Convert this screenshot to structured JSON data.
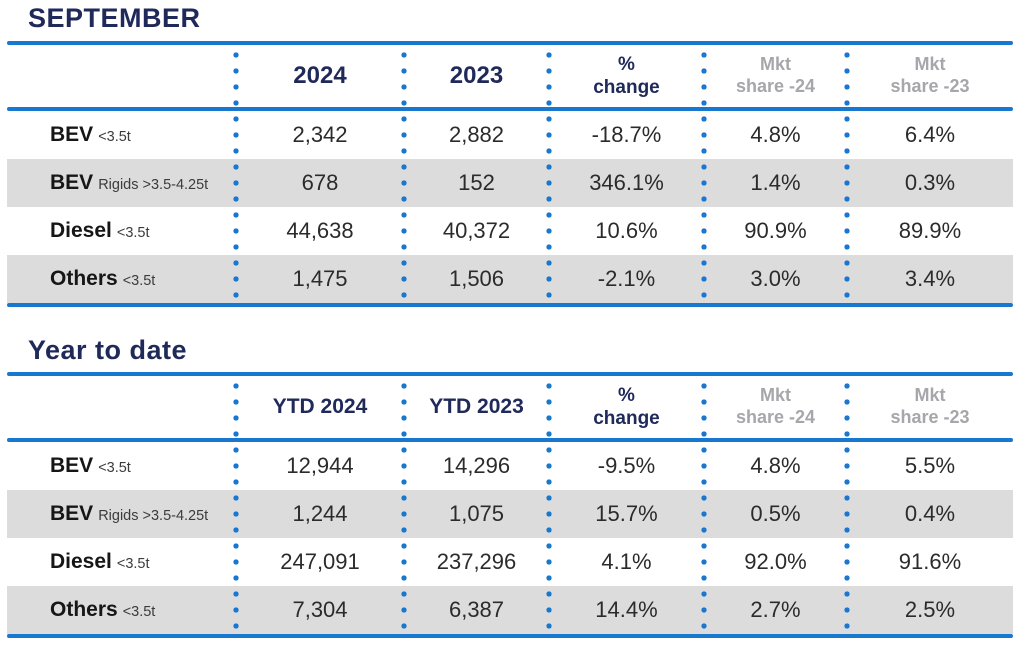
{
  "colors": {
    "title_navy": "#202a5a",
    "rule_blue": "#1878cf",
    "header_gray": "#a6a6ab",
    "alt_row_gray": "#dcdcdc",
    "body_text": "#2b2b2b"
  },
  "sections": [
    {
      "title": "SEPTEMBER",
      "column_headers": [
        {
          "style": "h-year",
          "lines": [
            "2024"
          ]
        },
        {
          "style": "h-year",
          "lines": [
            "2023"
          ]
        },
        {
          "style": "h-navy",
          "lines": [
            "%",
            "change"
          ]
        },
        {
          "style": "h-gray",
          "lines": [
            "Mkt",
            "share -24"
          ]
        },
        {
          "style": "h-gray",
          "lines": [
            "Mkt",
            "share -23"
          ]
        }
      ],
      "rows": [
        {
          "category": "BEV",
          "spec": "<3.5t",
          "values": [
            "2,342",
            "2,882",
            "-18.7%",
            "4.8%",
            "6.4%"
          ]
        },
        {
          "category": "BEV",
          "spec": "Rigids >3.5-4.25t",
          "values": [
            "678",
            "152",
            "346.1%",
            "1.4%",
            "0.3%"
          ]
        },
        {
          "category": "Diesel",
          "spec": "<3.5t",
          "values": [
            "44,638",
            "40,372",
            "10.6%",
            "90.9%",
            "89.9%"
          ]
        },
        {
          "category": "Others",
          "spec": "<3.5t",
          "values": [
            "1,475",
            "1,506",
            "-2.1%",
            "3.0%",
            "3.4%"
          ]
        }
      ]
    },
    {
      "title": "Year to date",
      "column_headers": [
        {
          "style": "h-ytd",
          "lines": [
            "YTD 2024"
          ]
        },
        {
          "style": "h-ytd",
          "lines": [
            "YTD 2023"
          ]
        },
        {
          "style": "h-navy",
          "lines": [
            "%",
            "change"
          ]
        },
        {
          "style": "h-gray",
          "lines": [
            "Mkt",
            "share -24"
          ]
        },
        {
          "style": "h-gray",
          "lines": [
            "Mkt",
            "share -23"
          ]
        }
      ],
      "rows": [
        {
          "category": "BEV",
          "spec": "<3.5t",
          "values": [
            "12,944",
            "14,296",
            "-9.5%",
            "4.8%",
            "5.5%"
          ]
        },
        {
          "category": "BEV",
          "spec": "Rigids >3.5-4.25t",
          "values": [
            "1,244",
            "1,075",
            "15.7%",
            "0.5%",
            "0.4%"
          ]
        },
        {
          "category": "Diesel",
          "spec": "<3.5t",
          "values": [
            "247,091",
            "237,296",
            "4.1%",
            "92.0%",
            "91.6%"
          ]
        },
        {
          "category": "Others",
          "spec": "<3.5t",
          "values": [
            "7,304",
            "6,387",
            "14.4%",
            "2.7%",
            "2.5%"
          ]
        }
      ]
    }
  ]
}
